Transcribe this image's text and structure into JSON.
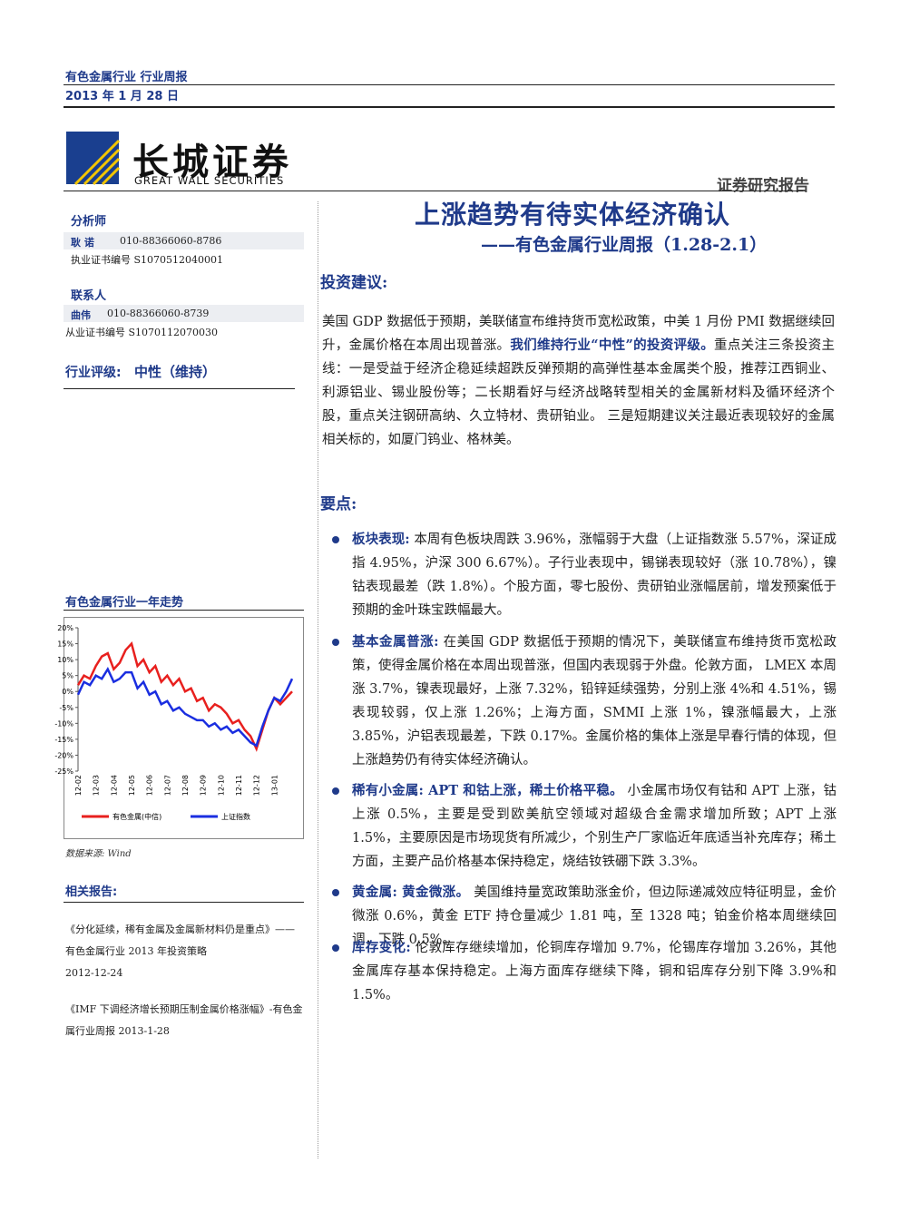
{
  "header": {
    "industry": "有色金属行业 行业周报",
    "date": "2013 年 1 月 28 日"
  },
  "logo": {
    "cn": "长城证券",
    "en": "GREAT WALL SECURITIES",
    "report_type": "证券研究报告"
  },
  "sidebar": {
    "analyst_heading": "分析师",
    "analyst_name": "耿 诺",
    "analyst_phone": "010-88366060-8786",
    "analyst_cert": "执业证书编号 S1070512040001",
    "contact_heading": "联系人",
    "contact_name": "曲伟",
    "contact_phone": "010-88366060-8739",
    "contact_cert": "从业证书编号 S1070112070030",
    "rating_label": "行业评级:",
    "rating": "中性（维持）"
  },
  "chart_data": {
    "type": "line",
    "title": "有色金属行业一年走势",
    "source": "数据来源: Wind",
    "categories": [
      "12-02",
      null,
      null,
      "12-03",
      null,
      null,
      "12-04",
      null,
      null,
      "12-05",
      null,
      null,
      "12-06",
      null,
      null,
      "12-07",
      null,
      null,
      "12-08",
      null,
      null,
      "12-09",
      null,
      null,
      "12-10",
      null,
      null,
      "12-11",
      null,
      null,
      "12-12",
      null,
      null,
      "13-01",
      null,
      null,
      null
    ],
    "series": [
      {
        "name": "有色金属(中信)",
        "color": "#e8201e",
        "values": [
          2,
          5,
          4,
          8,
          11,
          12,
          7,
          9,
          13,
          15,
          8,
          10,
          6,
          8,
          3,
          5,
          2,
          4,
          0,
          1,
          -3,
          -2,
          -6,
          -4,
          -5,
          -7,
          -10,
          -9,
          -12,
          -14,
          -18,
          -12,
          -6,
          -2,
          -4,
          -2,
          0
        ]
      },
      {
        "name": "上证指数",
        "color": "#1a2ee0",
        "values": [
          -1,
          3,
          2,
          5,
          4,
          7,
          3,
          4,
          6,
          6,
          1,
          3,
          -1,
          0,
          -4,
          -3,
          -6,
          -5,
          -7,
          -8,
          -9,
          -9,
          -11,
          -10,
          -12,
          -11,
          -13,
          -12,
          -14,
          -16,
          -17,
          -11,
          -6,
          -2,
          -3,
          0,
          4
        ]
      }
    ],
    "ylim": [
      -25,
      20
    ],
    "yticks": [
      {
        "value": 20,
        "label": "20%"
      },
      {
        "value": 15,
        "label": "15%"
      },
      {
        "value": 10,
        "label": "10%"
      },
      {
        "value": 5,
        "label": "5%"
      },
      {
        "value": 0,
        "label": "0%"
      },
      {
        "value": -5,
        "label": "-5%"
      },
      {
        "value": -10,
        "label": "-10%"
      },
      {
        "value": -15,
        "label": "-15%"
      },
      {
        "value": -20,
        "label": "-20%"
      },
      {
        "value": -25,
        "label": "-25%"
      }
    ],
    "grid": false
  },
  "related": {
    "heading": "相关报告:",
    "items": [
      {
        "title": "《分化延续，稀有金属及金属新材料仍是重点》——有色金属行业 2013 年投资策略",
        "date": "2012-12-24"
      },
      {
        "title": "《IMF 下调经济增长预期压制金属价格涨幅》-有色金属行业周报 2013-1-28"
      }
    ]
  },
  "main": {
    "title": "上涨趋势有待实体经济确认",
    "subtitle": "——有色金属行业周报（1.28-2.1）",
    "advice_heading": "投资建议:",
    "advice": [
      "美国 GDP 数据低于预期，美联储宣布维持货币宽松政策，中美 1 月份 PMI 数据继续回升，金属价格在本周出现普涨。",
      "我们维持行业“中性”的投资评级。",
      "重点关注三条投资主线：一是受益于经济企稳延续超跌反弹预期的高弹性基本金属类个股，推荐江西铜业、利源铝业、锡业股份等；二长期看好与经济战略转型相关的金属新材料及循环经济个股，重点关注钢研高纳、久立特材、贵研铂业。 三是短期建议关注最近表现较好的金属相关标的，如厦门钨业、格林美。"
    ],
    "points_heading": "要点:",
    "points": [
      {
        "label": "板块表现:",
        "text": "本周有色板块周跌 3.96%，涨幅弱于大盘（上证指数涨 5.57%，深证成指 4.95%，沪深 300 6.67%）。子行业表现中，锡锑表现较好（涨 10.78%），镍钴表现最差（跌 1.8%）。个股方面，零七股份、贵研铂业涨幅居前，增发预案低于预期的金叶珠宝跌幅最大。"
      },
      {
        "label": "基本金属普涨:",
        "text": "在美国 GDP 数据低于预期的情况下，美联储宣布维持货币宽松政策，使得金属价格在本周出现普涨，但国内表现弱于外盘。伦敦方面， LMEX 本周涨 3.7%，镍表现最好，上涨 7.32%，铅锌延续强势，分别上涨 4%和 4.51%，锡表现较弱，仅上涨 1.26%；上海方面，SMMI 上涨 1%，镍涨幅最大，上涨 3.85%，沪铝表现最差，下跌 0.17%。金属价格的集体上涨是早春行情的体现，但上涨趋势仍有待实体经济确认。"
      },
      {
        "label": "稀有小金属: APT 和钴上涨，稀土价格平稳。",
        "text": "小金属市场仅有钴和 APT 上涨，钴上涨 0.5%，主要是受到欧美航空领域对超级合金需求增加所致；APT 上涨 1.5%，主要原因是市场现货有所减少，个别生产厂家临近年底适当补充库存；稀土方面，主要产品价格基本保持稳定，烧结钕铁硼下跌 3.3%。"
      },
      {
        "label": "黄金属: 黄金微涨。",
        "text": "美国维持量宽政策助涨金价，但边际递减效应特征明显，金价微涨 0.6%，黄金 ETF 持仓量减少 1.81 吨，至 1328 吨；铂金价格本周继续回调，下跌 0.5%。"
      },
      {
        "label": "库存变化:",
        "text": "伦敦库存继续增加，伦铜库存增加 9.7%，伦锡库存增加 3.26%，其他金属库存基本保持稳定。上海方面库存继续下降，铜和铝库存分别下降 3.9%和 1.5%。"
      }
    ]
  }
}
